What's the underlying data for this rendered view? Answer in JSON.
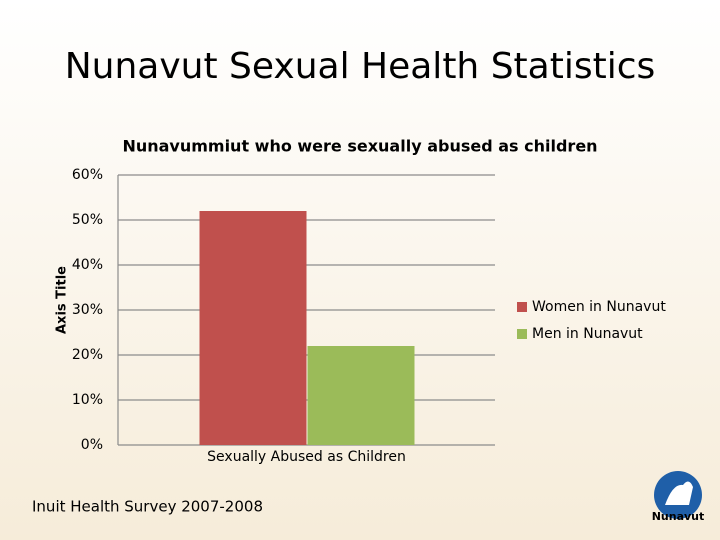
{
  "slide": {
    "title": "Nunavut Sexual Health Statistics",
    "source": "Inuit Health Survey 2007-2008",
    "logo_text": "Nunavut"
  },
  "chart_data": {
    "type": "bar",
    "title": "Nunavummiut who were sexually abused as children",
    "y_label": "Axis Title",
    "categories": [
      "Sexually Abused as Children"
    ],
    "series": [
      {
        "name": "Women in Nunavut",
        "color": "#c0504d",
        "values": [
          52
        ]
      },
      {
        "name": "Men in Nunavut",
        "color": "#9bbb59",
        "values": [
          22
        ]
      }
    ],
    "ylim": [
      0,
      60
    ],
    "yticks": [
      {
        "value": 0,
        "label": "0%"
      },
      {
        "value": 10,
        "label": "10%"
      },
      {
        "value": 20,
        "label": "20%"
      },
      {
        "value": 30,
        "label": "30%"
      },
      {
        "value": 40,
        "label": "40%"
      },
      {
        "value": 50,
        "label": "50%"
      },
      {
        "value": 60,
        "label": "60%"
      }
    ],
    "grid": true,
    "legend": "right"
  }
}
